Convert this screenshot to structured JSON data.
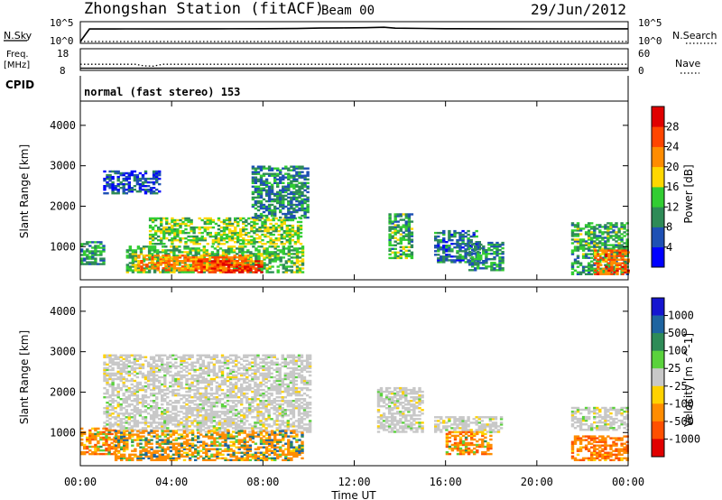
{
  "header": {
    "station": "Zhongshan Station (fitACF)",
    "beam": "Beam 00",
    "date": "29/Jun/2012"
  },
  "top_panels": {
    "nsky_label": "N.Sky",
    "nsky_ticks": [
      "10^5",
      "10^0"
    ],
    "nsearch_label": "N.Search",
    "nsearch_ticks": [
      "10^5",
      "10^0"
    ],
    "freq_label_1": "Freq.",
    "freq_label_2": "[MHz]",
    "freq_ticks": [
      "18",
      "8"
    ],
    "nave_label": "Nave",
    "nave_ticks": [
      "60",
      "0"
    ],
    "cpid_label": "CPID",
    "cpid_value": "normal (fast stereo) 153"
  },
  "colors": {
    "power": [
      "#0000ff",
      "#1e50b4",
      "#2e8b57",
      "#32cd32",
      "#ffd700",
      "#ff8c00",
      "#ff4500",
      "#e00000"
    ],
    "velocity": [
      "#1515d0",
      "#1e64a0",
      "#2e8b57",
      "#5ad23c",
      "#c8c8c8",
      "#ffd200",
      "#ff8c00",
      "#ff5000",
      "#e10000"
    ],
    "ground_scatter": "#c8c8c8"
  },
  "chart_data": [
    {
      "type": "line",
      "title": "N.Sky / N.Search",
      "x_range_hours": [
        0,
        24
      ],
      "y_scale": "log",
      "series": [
        {
          "name": "N.Sky",
          "x": [
            0,
            0.4,
            2,
            4,
            6,
            8,
            9.5,
            10.5,
            11.5,
            12.5,
            13.3,
            13.8,
            15,
            16,
            18,
            20,
            22,
            24
          ],
          "values": [
            1,
            3000,
            3200,
            3000,
            3300,
            3500,
            4000,
            5200,
            5800,
            6500,
            9000,
            5000,
            4200,
            3600,
            3300,
            3200,
            3200,
            3300
          ]
        },
        {
          "name": "N.Search",
          "x": [
            0,
            24
          ],
          "values": [
            1,
            1
          ]
        }
      ]
    },
    {
      "type": "line",
      "title": "Freq. / Nave",
      "x_range_hours": [
        0,
        24
      ],
      "series": [
        {
          "name": "Freq. [MHz]",
          "x": [
            0,
            24
          ],
          "values": [
            8.2,
            8.2
          ]
        },
        {
          "name": "Nave",
          "x": [
            0,
            2.4,
            2.8,
            3.2,
            3.6,
            24
          ],
          "values": [
            16,
            16,
            10,
            9,
            16,
            16
          ]
        }
      ]
    },
    {
      "type": "heatmap",
      "title": "Power [dB]",
      "xlabel": "Time UT",
      "ylabel": "Slant Range [km]",
      "xlim": [
        0,
        24
      ],
      "ylim": [
        180,
        4600
      ],
      "x_tick_labels": [
        "00:00",
        "04:00",
        "08:00",
        "12:00",
        "16:00",
        "20:00",
        "00:00"
      ],
      "y_ticks": [
        1000,
        2000,
        3000,
        4000
      ],
      "colorbar": {
        "label": "Power [dB]",
        "ticks": [
          4,
          8,
          12,
          16,
          20,
          24,
          28
        ],
        "range": [
          0,
          32
        ]
      },
      "regions": [
        {
          "t": [
            0.0,
            1.0
          ],
          "r": [
            550,
            1100
          ],
          "v": 11
        },
        {
          "t": [
            1.0,
            3.5
          ],
          "r": [
            2300,
            2850
          ],
          "v": 6
        },
        {
          "t": [
            2.0,
            9.7
          ],
          "r": [
            350,
            1000
          ],
          "v": 13
        },
        {
          "t": [
            2.5,
            7.5
          ],
          "r": [
            400,
            800
          ],
          "v": 23
        },
        {
          "t": [
            5.0,
            8.0
          ],
          "r": [
            350,
            650
          ],
          "v": 27
        },
        {
          "t": [
            3.0,
            9.7
          ],
          "r": [
            1050,
            1700
          ],
          "v": 15
        },
        {
          "t": [
            7.5,
            10.0
          ],
          "r": [
            1700,
            3000
          ],
          "v": 9
        },
        {
          "t": [
            13.5,
            14.5
          ],
          "r": [
            700,
            1800
          ],
          "v": 12
        },
        {
          "t": [
            15.5,
            17.5
          ],
          "r": [
            600,
            1400
          ],
          "v": 8
        },
        {
          "t": [
            17.0,
            18.5
          ],
          "r": [
            400,
            1100
          ],
          "v": 10
        },
        {
          "t": [
            21.5,
            24.0
          ],
          "r": [
            300,
            1600
          ],
          "v": 12
        },
        {
          "t": [
            22.5,
            24.0
          ],
          "r": [
            300,
            900
          ],
          "v": 24
        }
      ]
    },
    {
      "type": "heatmap",
      "title": "Velocity [m s^-1]",
      "xlabel": "Time UT",
      "ylabel": "Slant Range [km]",
      "xlim": [
        0,
        24
      ],
      "ylim": [
        180,
        4600
      ],
      "x_tick_labels": [
        "00:00",
        "04:00",
        "08:00",
        "12:00",
        "16:00",
        "20:00",
        "00:00"
      ],
      "y_ticks": [
        1000,
        2000,
        3000,
        4000
      ],
      "colorbar": {
        "label": "Velocity [m s^-1]",
        "ticks": [
          "1000",
          "500",
          "100",
          "25",
          "-25",
          "-100",
          "-500",
          "-1000"
        ]
      },
      "regions": [
        {
          "t": [
            1.0,
            10.0
          ],
          "r": [
            1000,
            2900
          ],
          "v": 0,
          "ground_scatter": true
        },
        {
          "t": [
            0.0,
            1.5
          ],
          "r": [
            450,
            1100
          ],
          "v": -300
        },
        {
          "t": [
            1.5,
            9.7
          ],
          "r": [
            300,
            1050
          ],
          "v": -150
        },
        {
          "t": [
            13.0,
            15.0
          ],
          "r": [
            1000,
            2100
          ],
          "v": 0,
          "ground_scatter": true
        },
        {
          "t": [
            15.5,
            18.5
          ],
          "r": [
            1000,
            1400
          ],
          "v": 0,
          "ground_scatter": true
        },
        {
          "t": [
            16.0,
            18.0
          ],
          "r": [
            450,
            1000
          ],
          "v": -300
        },
        {
          "t": [
            21.5,
            24.0
          ],
          "r": [
            1050,
            1600
          ],
          "v": 0,
          "ground_scatter": true
        },
        {
          "t": [
            21.5,
            24.0
          ],
          "r": [
            300,
            900
          ],
          "v": -400
        }
      ]
    }
  ]
}
